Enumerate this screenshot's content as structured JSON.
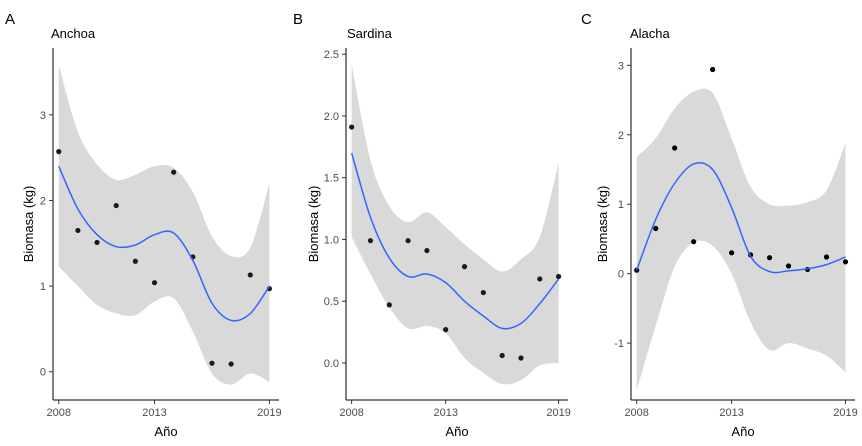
{
  "chart_data": [
    {
      "type": "scatter",
      "panel_letter": "A",
      "title": "Anchoa",
      "xlabel": "Año",
      "ylabel": "Biomasa (kg)",
      "xlim": [
        2007.7,
        2019.5
      ],
      "ylim": [
        -0.33,
        3.78
      ],
      "xticks": [
        2008,
        2013,
        2019
      ],
      "yticks": [
        0,
        1,
        2,
        3
      ],
      "grid": false,
      "colors": {
        "points": "#1a1a1a",
        "smooth": "#3366ff",
        "ribbon": "#d9d9d9"
      },
      "points": [
        {
          "x": 2008,
          "y": 2.57
        },
        {
          "x": 2009,
          "y": 1.65
        },
        {
          "x": 2010,
          "y": 1.51
        },
        {
          "x": 2011,
          "y": 1.94
        },
        {
          "x": 2012,
          "y": 1.29
        },
        {
          "x": 2013,
          "y": 1.04
        },
        {
          "x": 2014,
          "y": 2.33
        },
        {
          "x": 2015,
          "y": 1.34
        },
        {
          "x": 2016,
          "y": 0.1
        },
        {
          "x": 2017,
          "y": 0.09
        },
        {
          "x": 2018,
          "y": 1.13
        },
        {
          "x": 2019,
          "y": 0.97
        }
      ],
      "smooth": {
        "x": [
          2008,
          2009,
          2010,
          2011,
          2012,
          2013,
          2014,
          2015,
          2016,
          2017,
          2018,
          2019
        ],
        "y": [
          2.4,
          1.9,
          1.6,
          1.46,
          1.48,
          1.6,
          1.62,
          1.3,
          0.8,
          0.6,
          0.68,
          1.0
        ],
        "lower": [
          1.23,
          1.0,
          0.78,
          0.68,
          0.66,
          0.82,
          0.86,
          0.47,
          -0.02,
          -0.15,
          -0.02,
          -0.12
        ],
        "upper": [
          3.58,
          2.8,
          2.42,
          2.24,
          2.3,
          2.4,
          2.38,
          2.1,
          1.58,
          1.35,
          1.45,
          2.2
        ]
      }
    },
    {
      "type": "scatter",
      "panel_letter": "B",
      "title": "Sardina",
      "xlabel": "Año",
      "ylabel": "Biomasa (kg)",
      "xlim": [
        2007.7,
        2019.5
      ],
      "ylim": [
        -0.3,
        2.55
      ],
      "xticks": [
        2008,
        2013,
        2019
      ],
      "yticks": [
        0.0,
        0.5,
        1.0,
        1.5,
        2.0,
        2.5
      ],
      "ytick_labels": [
        "0.0",
        "0.5",
        "1.0",
        "1.5",
        "2.0",
        "2.5"
      ],
      "grid": false,
      "colors": {
        "points": "#1a1a1a",
        "smooth": "#3366ff",
        "ribbon": "#d9d9d9"
      },
      "points": [
        {
          "x": 2008,
          "y": 1.91
        },
        {
          "x": 2009,
          "y": 0.99
        },
        {
          "x": 2010,
          "y": 0.47
        },
        {
          "x": 2011,
          "y": 0.99
        },
        {
          "x": 2012,
          "y": 0.91
        },
        {
          "x": 2013,
          "y": 0.27
        },
        {
          "x": 2014,
          "y": 0.78
        },
        {
          "x": 2015,
          "y": 0.57
        },
        {
          "x": 2016,
          "y": 0.06
        },
        {
          "x": 2017,
          "y": 0.04
        },
        {
          "x": 2018,
          "y": 0.68
        },
        {
          "x": 2019,
          "y": 0.7
        }
      ],
      "smooth": {
        "x": [
          2008,
          2009,
          2010,
          2011,
          2012,
          2013,
          2014,
          2015,
          2016,
          2017,
          2018,
          2019
        ],
        "y": [
          1.7,
          1.18,
          0.85,
          0.7,
          0.72,
          0.65,
          0.5,
          0.38,
          0.28,
          0.32,
          0.48,
          0.68
        ],
        "lower": [
          1.02,
          0.72,
          0.45,
          0.28,
          0.3,
          0.24,
          0.04,
          -0.08,
          -0.17,
          -0.14,
          -0.02,
          0.0
        ],
        "upper": [
          2.42,
          1.64,
          1.27,
          1.14,
          1.22,
          1.1,
          0.96,
          0.84,
          0.74,
          0.84,
          1.02,
          1.62
        ]
      }
    },
    {
      "type": "scatter",
      "panel_letter": "C",
      "title": "Alacha",
      "xlabel": "Año",
      "ylabel": "Biomasa (kg)",
      "xlim": [
        2007.7,
        2019.5
      ],
      "ylim": [
        -1.82,
        3.25
      ],
      "xticks": [
        2008,
        2013,
        2019
      ],
      "yticks": [
        -1,
        0,
        1,
        2,
        3
      ],
      "grid": false,
      "colors": {
        "points": "#000000",
        "smooth": "#3366ff",
        "ribbon": "#d9d9d9"
      },
      "points": [
        {
          "x": 2008,
          "y": 0.05
        },
        {
          "x": 2009,
          "y": 0.65
        },
        {
          "x": 2010,
          "y": 1.81
        },
        {
          "x": 2011,
          "y": 0.46
        },
        {
          "x": 2012,
          "y": 2.94
        },
        {
          "x": 2013,
          "y": 0.3
        },
        {
          "x": 2014,
          "y": 0.27
        },
        {
          "x": 2015,
          "y": 0.23
        },
        {
          "x": 2016,
          "y": 0.11
        },
        {
          "x": 2017,
          "y": 0.06
        },
        {
          "x": 2018,
          "y": 0.24
        },
        {
          "x": 2019,
          "y": 0.17
        }
      ],
      "smooth": {
        "x": [
          2008,
          2009,
          2010,
          2011,
          2012,
          2013,
          2014,
          2015,
          2016,
          2017,
          2018,
          2019
        ],
        "y": [
          0.05,
          0.78,
          1.3,
          1.58,
          1.5,
          0.95,
          0.25,
          0.03,
          0.04,
          0.07,
          0.13,
          0.24
        ],
        "lower": [
          -1.68,
          -0.75,
          0.1,
          0.45,
          0.4,
          0.0,
          -0.7,
          -1.1,
          -1.0,
          -1.08,
          -1.18,
          -1.42
        ],
        "upper": [
          1.68,
          1.95,
          2.38,
          2.62,
          2.6,
          1.95,
          1.25,
          1.0,
          0.98,
          1.03,
          1.2,
          1.88
        ]
      }
    }
  ]
}
